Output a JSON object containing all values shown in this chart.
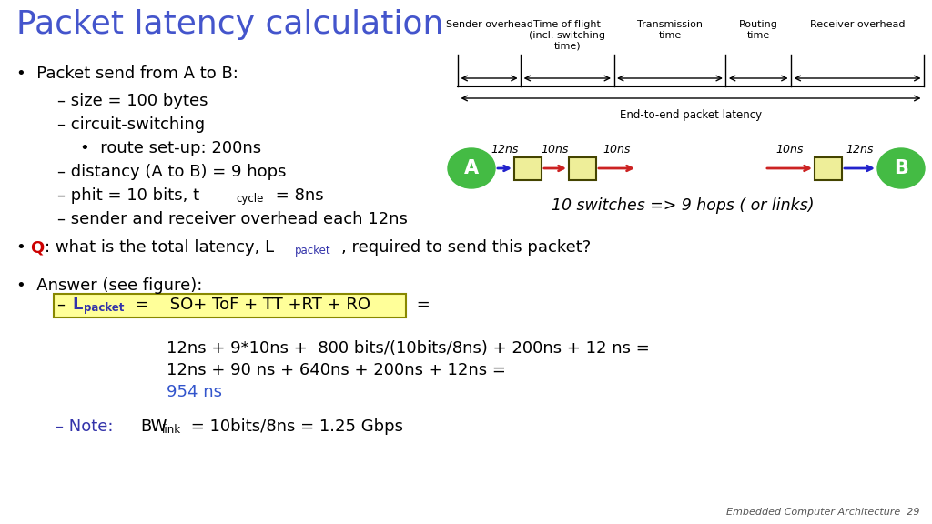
{
  "title": "Packet latency calculation",
  "title_color": "#4455cc",
  "title_fontsize": 26,
  "bg_color": "#ffffff",
  "text_color": "#000000",
  "blue_color": "#3333aa",
  "red_color": "#cc0000",
  "green_circle_color": "#44bb44",
  "yellow_box_color": "#eeee99",
  "slide_number": "Embedded Computer Architecture  29",
  "diagram_labels": [
    "Sender overhead",
    "Time of flight\n(incl. switching\ntime)",
    "Transmission\ntime",
    "Routing\ntime",
    "Receiver overhead"
  ],
  "diagram_end_label": "End-to-end packet latency",
  "calc1": "12ns + 9*10ns +  800 bits/(10bits/8ns) + 200ns + 12 ns =",
  "calc2": "12ns + 90 ns + 640ns + 200ns + 12ns =",
  "calc3": "954 ns",
  "calc_color": "#3355cc"
}
